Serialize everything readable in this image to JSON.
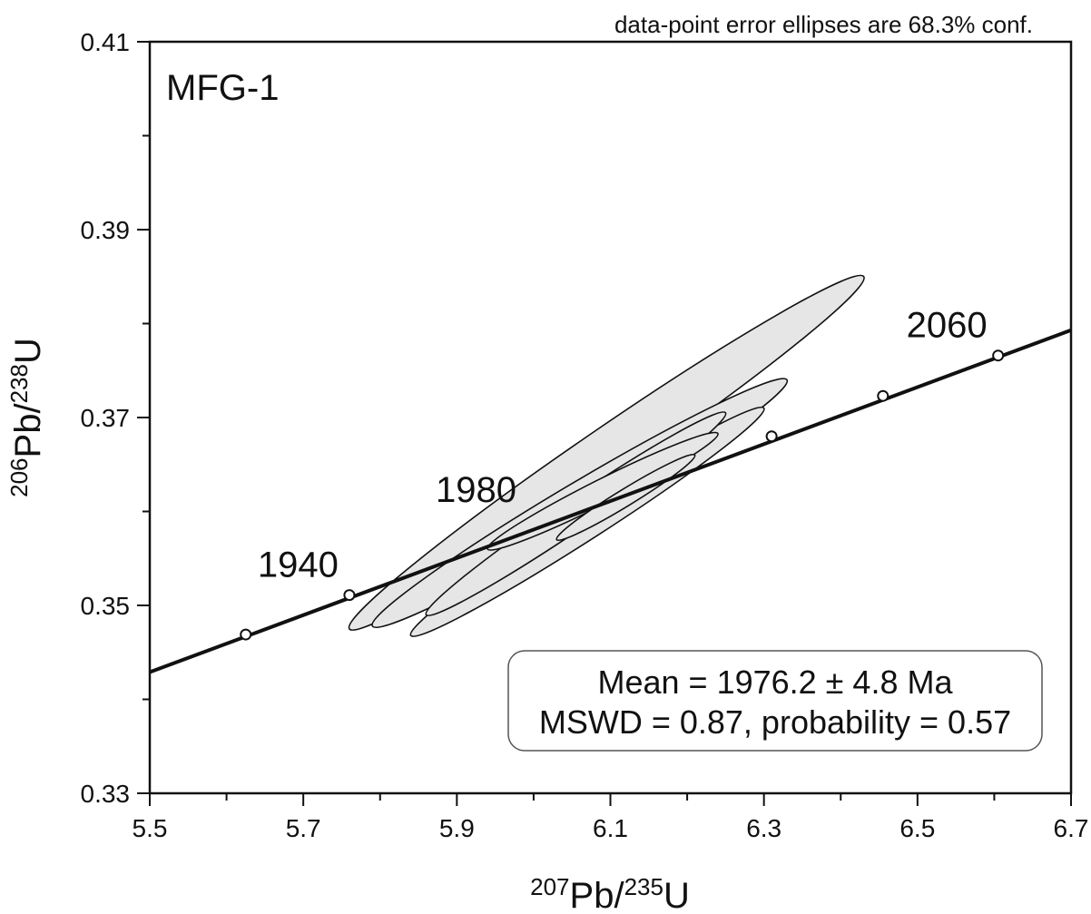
{
  "chart_data": {
    "type": "scatter",
    "subtype": "concordia",
    "note": "data-point error ellipses are 68.3% conf.",
    "sample_label": "MFG-1",
    "xlabel": {
      "sup1": "207",
      "base1": "Pb/",
      "sup2": "235",
      "base2": "U"
    },
    "ylabel": {
      "sup1": "206",
      "base1": "Pb/",
      "sup2": "238",
      "base2": "U"
    },
    "xlim": [
      5.5,
      6.7
    ],
    "ylim": [
      0.33,
      0.41
    ],
    "x_ticks": [
      "5.5",
      "5.7",
      "5.9",
      "6.1",
      "6.3",
      "6.5",
      "6.7"
    ],
    "y_ticks": [
      "0.33",
      "0.35",
      "0.37",
      "0.39",
      "0.41"
    ],
    "concordia": {
      "line": [
        [
          5.5,
          0.3429
        ],
        [
          6.7,
          0.3793
        ]
      ],
      "markers": [
        {
          "x": 5.625,
          "y": 0.3469,
          "age": ""
        },
        {
          "x": 5.76,
          "y": 0.3511,
          "age": "1940"
        },
        {
          "x": 6.31,
          "y": 0.368,
          "age": ""
        },
        {
          "x": 6.455,
          "y": 0.3723,
          "age": ""
        },
        {
          "x": 6.605,
          "y": 0.3766,
          "age": "2060"
        }
      ],
      "age_label_1980": "1980"
    },
    "ellipses": [
      {
        "cx": 6.11,
        "cy": 0.3663,
        "x1": 5.76,
        "y1": 0.3475,
        "x2": 6.43,
        "y2": 0.385,
        "minor": 0.0026
      },
      {
        "cx": 6.06,
        "cy": 0.3602,
        "x1": 5.79,
        "y1": 0.3478,
        "x2": 6.33,
        "y2": 0.374,
        "minor": 0.0022
      },
      {
        "cx": 6.07,
        "cy": 0.3581,
        "x1": 5.84,
        "y1": 0.3468,
        "x2": 6.3,
        "y2": 0.371,
        "minor": 0.0018
      },
      {
        "cx": 6.07,
        "cy": 0.3595,
        "x1": 5.86,
        "y1": 0.349,
        "x2": 6.25,
        "y2": 0.3705,
        "minor": 0.0016
      },
      {
        "cx": 6.1,
        "cy": 0.3614,
        "x1": 5.94,
        "y1": 0.356,
        "x2": 6.24,
        "y2": 0.3683,
        "minor": 0.0013
      },
      {
        "cx": 6.12,
        "cy": 0.3616,
        "x1": 6.03,
        "y1": 0.357,
        "x2": 6.21,
        "y2": 0.366,
        "minor": 0.0009
      }
    ],
    "stats": {
      "line1": "Mean = 1976.2 ± 4.8 Ma",
      "line2": "MSWD = 0.87, probability = 0.57"
    },
    "colors": {
      "ellipse_fill": "#e6e6e6",
      "stroke": "#111111",
      "background": "#ffffff"
    }
  }
}
